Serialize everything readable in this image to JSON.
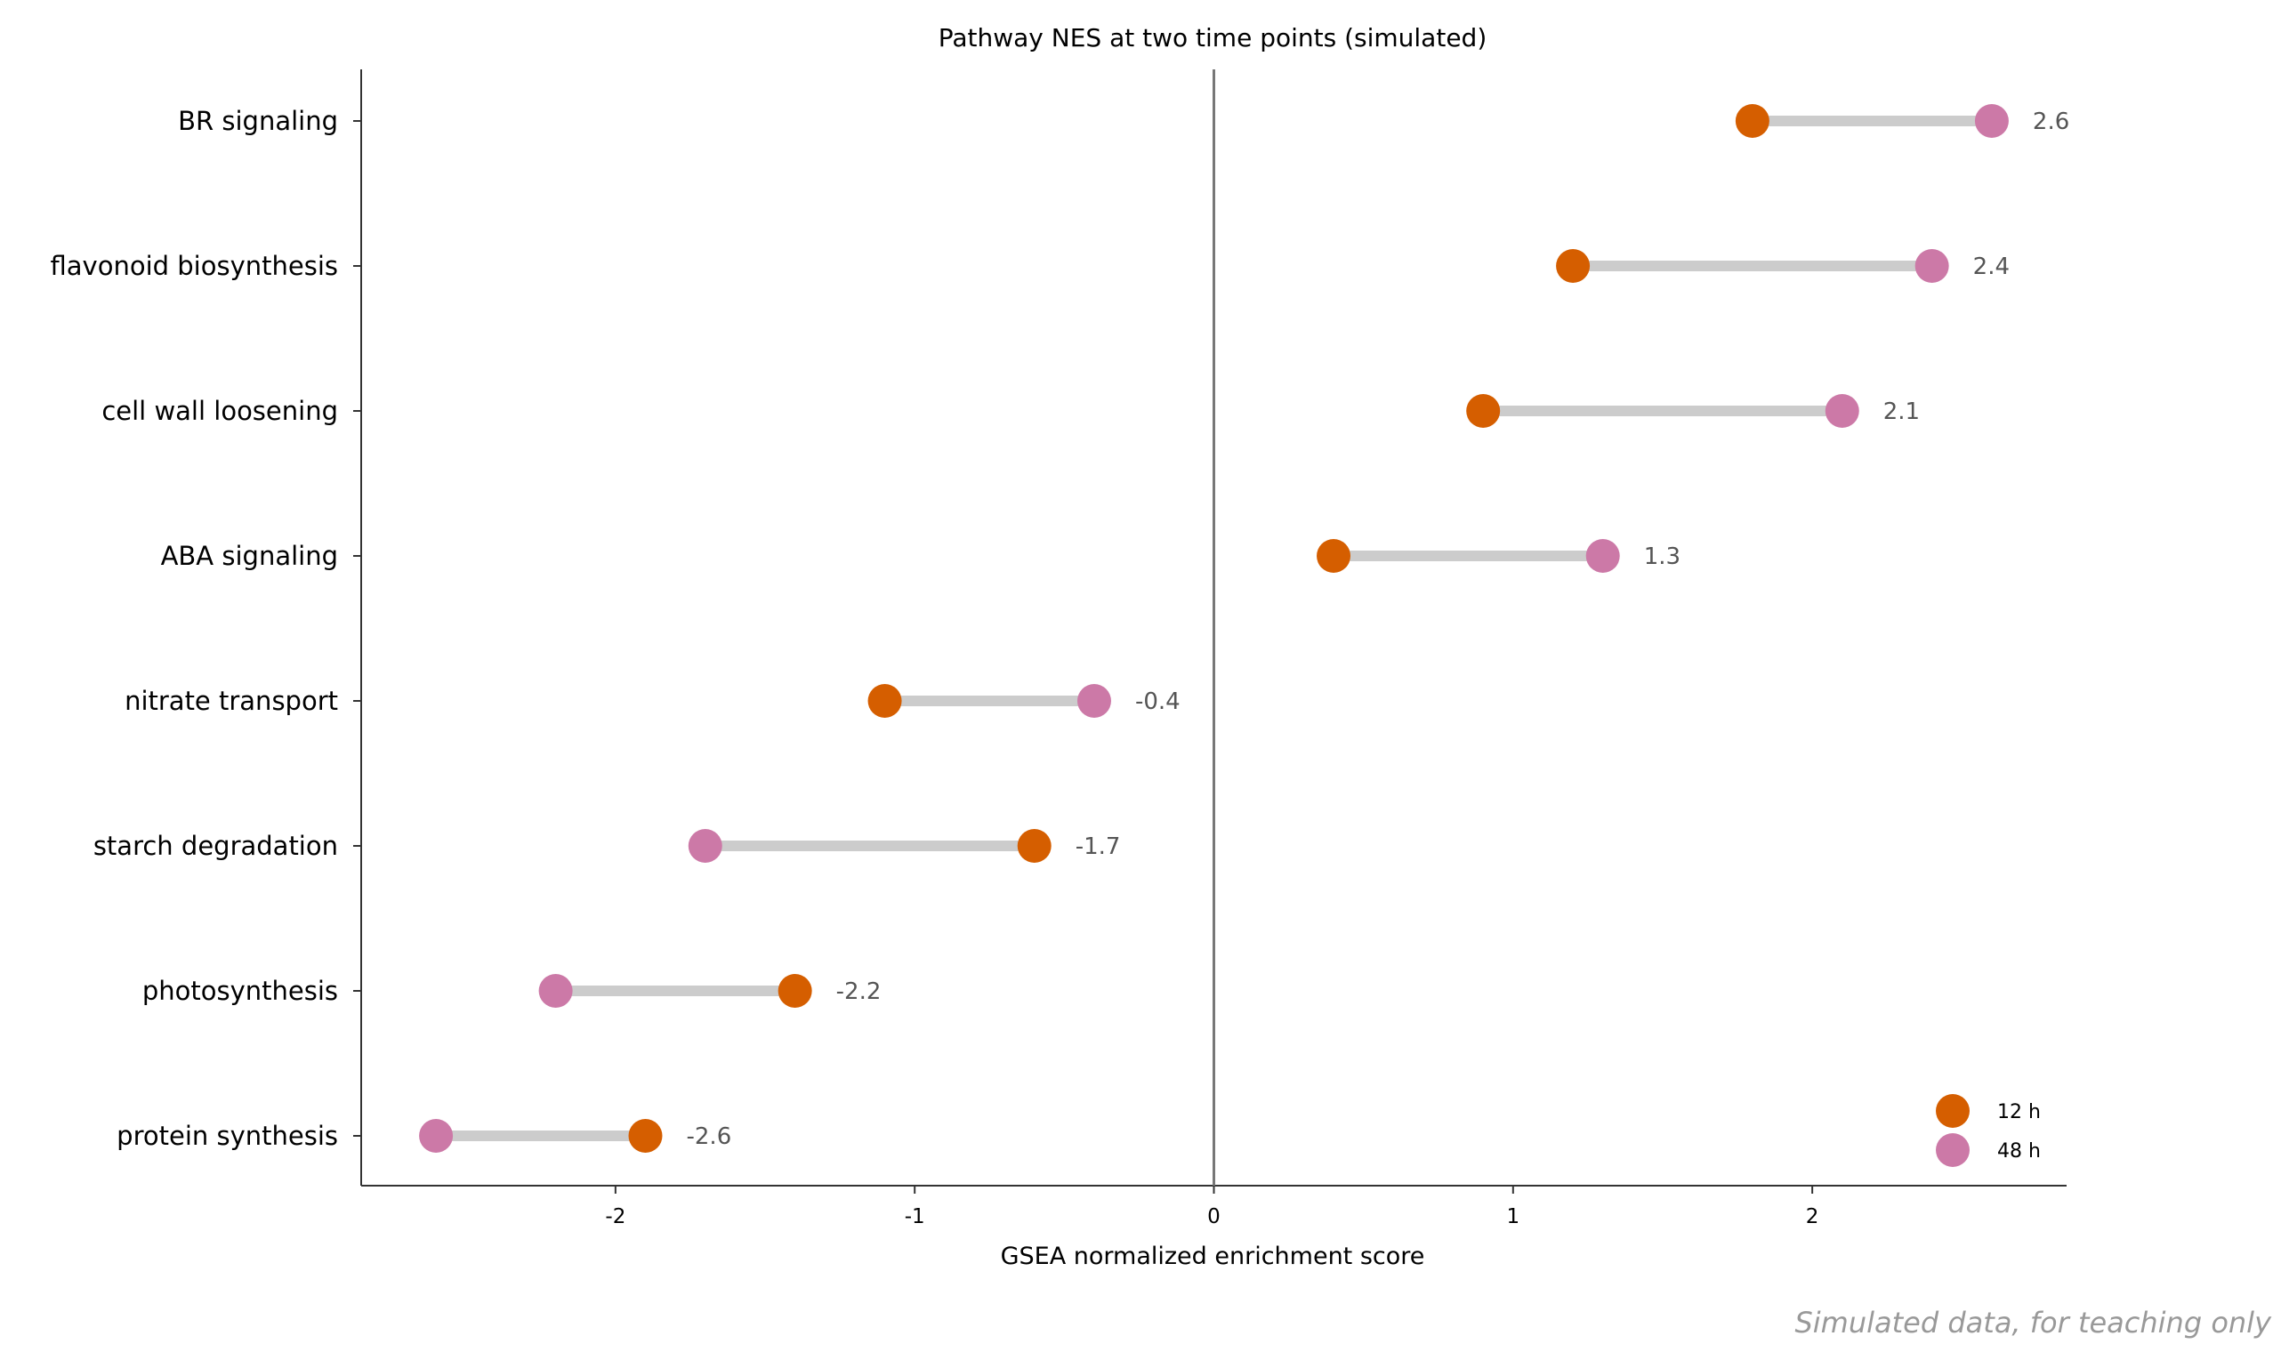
{
  "chart_data": {
    "type": "dumbbell",
    "title": "Pathway NES at two time points (simulated)",
    "xlabel": "GSEA normalized enrichment score",
    "ylabel": "",
    "xlim": [
      -2.85,
      2.85
    ],
    "x_ticks": [
      -2,
      -1,
      0,
      1,
      2
    ],
    "categories": [
      "BR signaling",
      "flavonoid biosynthesis",
      "cell wall loosening",
      "ABA signaling",
      "nitrate transport",
      "starch degradation",
      "photosynthesis",
      "protein synthesis"
    ],
    "series": [
      {
        "name": "12 h",
        "color": "#d55e00",
        "values": [
          1.8,
          1.2,
          0.9,
          0.4,
          -1.1,
          -0.6,
          -1.4,
          -1.9
        ]
      },
      {
        "name": "48 h",
        "color": "#cc79a7",
        "values": [
          2.6,
          2.4,
          2.1,
          1.3,
          -0.4,
          -1.7,
          -2.2,
          -2.6
        ]
      }
    ],
    "value_labels": [
      "2.6",
      "2.4",
      "2.1",
      "1.3",
      "-0.4",
      "-1.7",
      "-2.2",
      "-2.6"
    ],
    "connector_color": "#cccccc",
    "zero_line": true,
    "grid": false,
    "legend_position": "lower-right",
    "footnote": "Simulated data, for teaching only"
  }
}
